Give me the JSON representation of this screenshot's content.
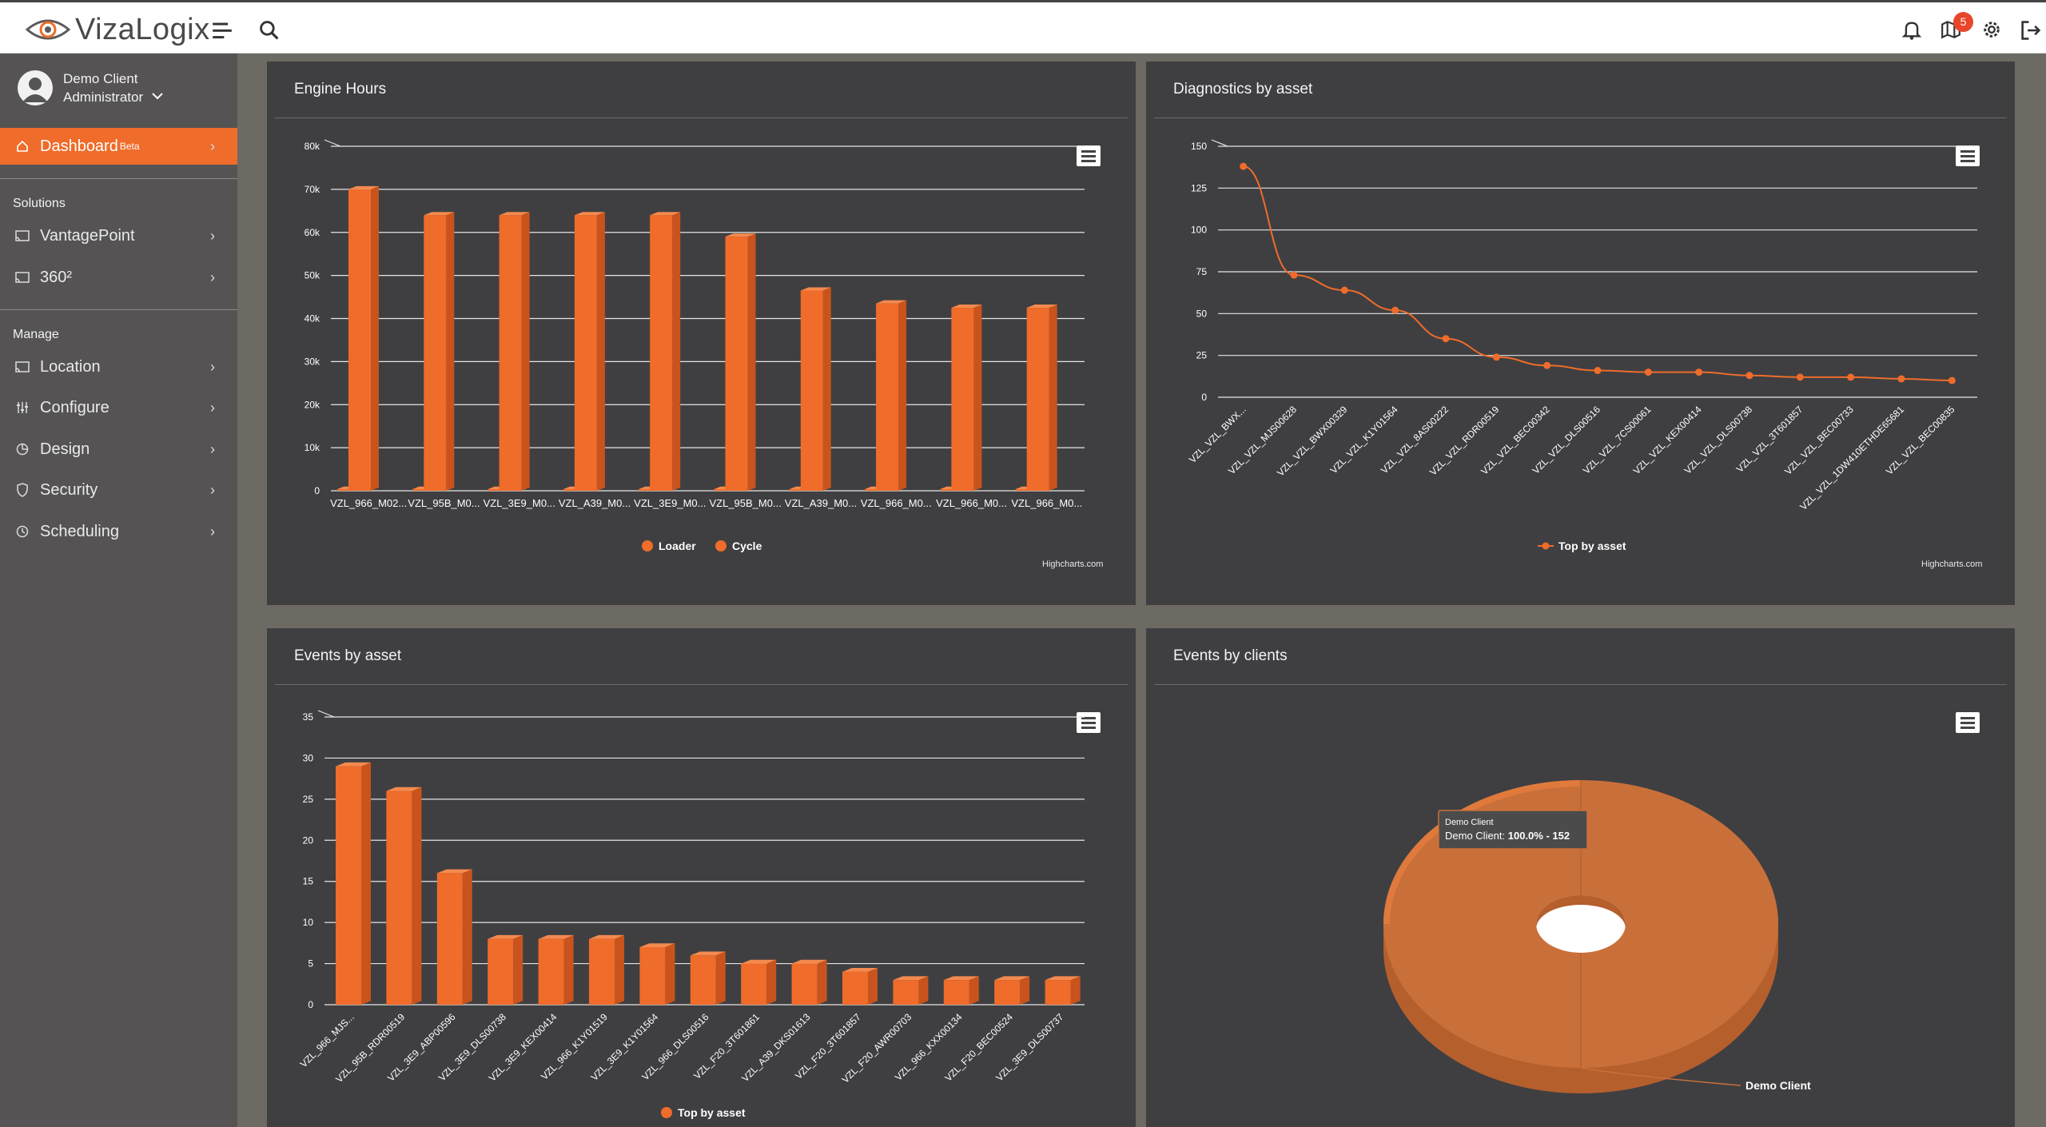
{
  "app": {
    "brand": "VizaLogix",
    "notifications_count": "5"
  },
  "user": {
    "name": "Demo Client",
    "role": "Administrator"
  },
  "sidebar": {
    "dashboard": {
      "label": "Dashboard",
      "badge": "Beta"
    },
    "solutions_heading": "Solutions",
    "solutions": [
      {
        "label": "VantagePoint",
        "icon": "cast-icon"
      },
      {
        "label": "360²",
        "icon": "cast-icon"
      }
    ],
    "manage_heading": "Manage",
    "manage": [
      {
        "label": "Location",
        "icon": "cast-icon"
      },
      {
        "label": "Configure",
        "icon": "sliders-icon"
      },
      {
        "label": "Design",
        "icon": "pie-icon"
      },
      {
        "label": "Security",
        "icon": "shield-icon"
      },
      {
        "label": "Scheduling",
        "icon": "clock-icon"
      }
    ]
  },
  "colors": {
    "accent": "#ef6c2a",
    "bar_front": "#ef6c2a",
    "bar_side": "#c9531c",
    "panel_bg": "#3f3f42",
    "page_bg": "#6d6a63"
  },
  "panels": {
    "engine_hours": {
      "title": "Engine Hours",
      "credit": "Highcharts.com"
    },
    "diagnostics": {
      "title": "Diagnostics by asset",
      "credit": "Highcharts.com"
    },
    "events_asset": {
      "title": "Events by asset"
    },
    "events_clients": {
      "title": "Events by clients"
    }
  },
  "chart_data": [
    {
      "id": "engine_hours",
      "type": "bar",
      "title": "Engine Hours",
      "categories": [
        "VZL_966_M02...",
        "VZL_95B_M0...",
        "VZL_3E9_M0...",
        "VZL_A39_M0...",
        "VZL_3E9_M0...",
        "VZL_95B_M0...",
        "VZL_A39_M0...",
        "VZL_966_M0...",
        "VZL_966_M0...",
        "VZL_966_M0..."
      ],
      "series": [
        {
          "name": "Loader",
          "values": [
            0,
            0,
            0,
            0,
            0,
            0,
            0,
            0,
            0,
            0
          ]
        },
        {
          "name": "Cycle",
          "values": [
            70000,
            64000,
            64000,
            64000,
            64000,
            59000,
            46500,
            43500,
            42500,
            42500
          ]
        }
      ],
      "yticks": [
        "0",
        "10k",
        "20k",
        "30k",
        "40k",
        "50k",
        "60k",
        "70k",
        "80k"
      ],
      "ylim": [
        0,
        80000
      ],
      "legend": "bottom"
    },
    {
      "id": "diagnostics",
      "type": "line",
      "title": "Diagnostics by asset",
      "categories": [
        "VZL_VZL_BWX...",
        "VZL_VZL_MJS00628",
        "VZL_VZL_BWX00329",
        "VZL_VZL_K1Y01564",
        "VZL_VZL_8AS00222",
        "VZL_VZL_RDR00519",
        "VZL_VZL_BEC00342",
        "VZL_VZL_DLS00516",
        "VZL_VZL_7CS00061",
        "VZL_VZL_KEX00414",
        "VZL_VZL_DLS00738",
        "VZL_VZL_3T601857",
        "VZL_VZL_BEC00733",
        "VZL_VZL_1DW410ETHDE65681",
        "VZL_VZL_BEC00835"
      ],
      "series": [
        {
          "name": "Top by asset",
          "values": [
            138,
            73,
            64,
            52,
            35,
            24,
            19,
            16,
            15,
            15,
            13,
            12,
            12,
            11,
            10
          ]
        }
      ],
      "yticks": [
        "0",
        "25",
        "50",
        "75",
        "100",
        "125",
        "150"
      ],
      "ylim": [
        0,
        150
      ],
      "legend": "bottom"
    },
    {
      "id": "events_asset",
      "type": "bar",
      "title": "Events by asset",
      "categories": [
        "VZL_966_MJS...",
        "VZL_95B_RDR00519",
        "VZL_3E9_ABP00596",
        "VZL_3E9_DLS00738",
        "VZL_3E9_KEX00414",
        "VZL_966_K1Y01519",
        "VZL_3E9_K1Y01564",
        "VZL_966_DLS00516",
        "VZL_F20_3T601861",
        "VZL_A39_DKS01613",
        "VZL_F20_3T601857",
        "VZL_F20_AWR00703",
        "VZL_966_KXX00134",
        "VZL_F20_BEC00524",
        "VZL_3E9_DLS00737"
      ],
      "series": [
        {
          "name": "Top by asset",
          "values": [
            29,
            26,
            16,
            8,
            8,
            8,
            7,
            6,
            5,
            5,
            4,
            3,
            3,
            3,
            3
          ]
        }
      ],
      "yticks": [
        "0",
        "5",
        "10",
        "15",
        "20",
        "25",
        "30",
        "35"
      ],
      "ylim": [
        0,
        35
      ],
      "legend": "bottom"
    },
    {
      "id": "events_clients",
      "type": "pie",
      "title": "Events by clients",
      "slices": [
        {
          "name": "Demo Client",
          "value": 152,
          "percent": 100.0
        }
      ],
      "tooltip": {
        "title": "Demo Client",
        "series": "Demo Client:",
        "value": "100.0% - 152"
      }
    }
  ]
}
